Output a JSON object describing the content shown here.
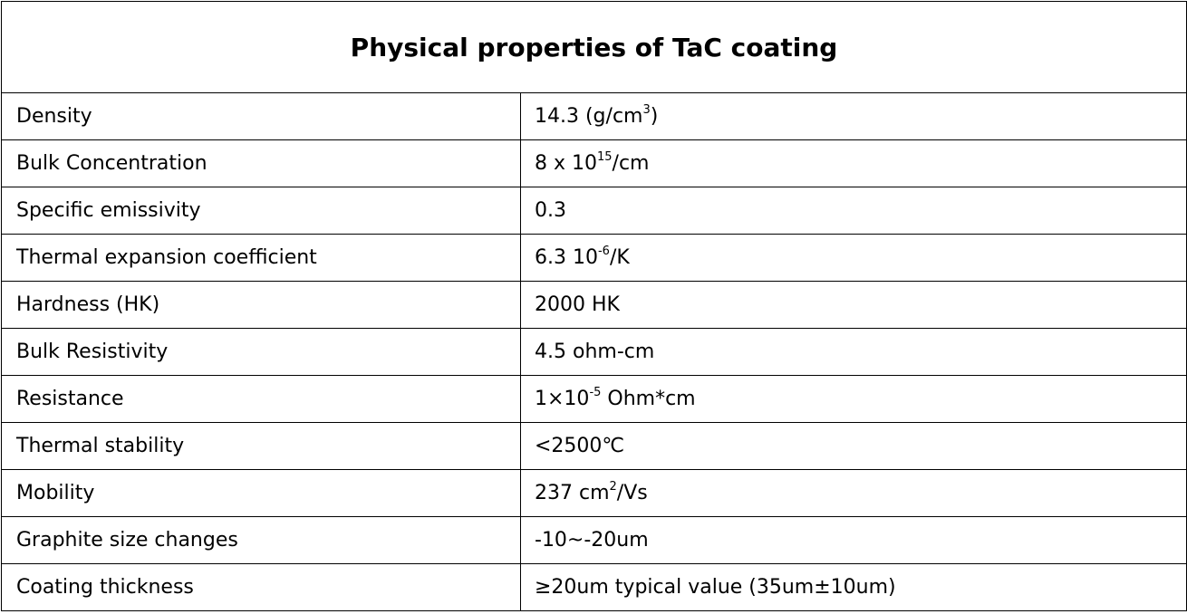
{
  "table": {
    "title": "Physical properties of TaC coating",
    "rows": [
      {
        "property": "Density",
        "value_main": "14.3 (g/cm",
        "value_sup": "3",
        "value_tail": ")"
      },
      {
        "property": "Bulk Concentration",
        "value_main": "8 x 10",
        "value_sup": "15",
        "value_tail": "/cm"
      },
      {
        "property": "Specific emissivity",
        "value_main": "0.3",
        "value_sup": "",
        "value_tail": ""
      },
      {
        "property": "Thermal expansion coefficient",
        "value_main": "6.3 10",
        "value_sup": "-6",
        "value_tail": "/K"
      },
      {
        "property": "Hardness (HK)",
        "value_main": "2000 HK",
        "value_sup": "",
        "value_tail": ""
      },
      {
        "property": "Bulk Resistivity",
        "value_main": "4.5 ohm-cm",
        "value_sup": "",
        "value_tail": ""
      },
      {
        "property": "Resistance",
        "value_main": "1×10",
        "value_sup": "-5",
        "value_tail": " Ohm*cm"
      },
      {
        "property": "Thermal stability",
        "value_main": "<2500℃",
        "value_sup": "",
        "value_tail": ""
      },
      {
        "property": "Mobility",
        "value_main": "237 cm",
        "value_sup": "2",
        "value_tail": "/Vs"
      },
      {
        "property": "Graphite size changes",
        "value_main": "-10~-20um",
        "value_sup": "",
        "value_tail": ""
      },
      {
        "property": "Coating thickness",
        "value_main": "≥20um typical value (35um±10um)",
        "value_sup": "",
        "value_tail": ""
      }
    ]
  }
}
